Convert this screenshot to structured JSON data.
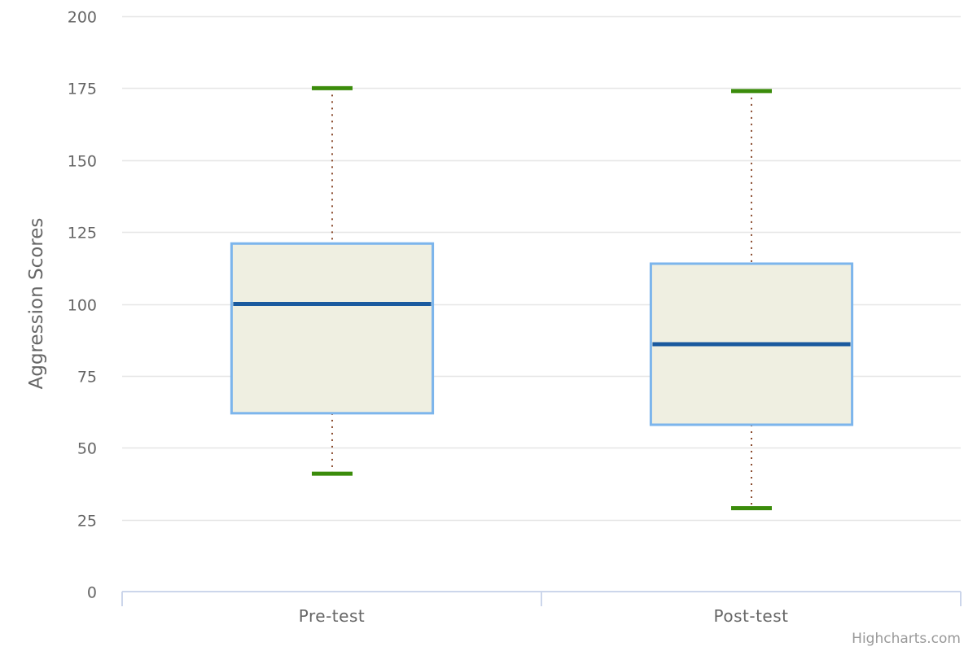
{
  "chart_data": {
    "type": "boxplot",
    "title": "",
    "xlabel": "",
    "ylabel": "Aggression Scores",
    "categories": [
      "Pre-test",
      "Post-test"
    ],
    "series": [
      {
        "boxes": [
          {
            "low": 41,
            "q1": 62,
            "median": 100,
            "q3": 121,
            "high": 175
          },
          {
            "low": 29,
            "q1": 58,
            "median": 86,
            "q3": 114,
            "high": 174
          }
        ]
      }
    ],
    "ylim": [
      0,
      200
    ],
    "yticks": [
      0,
      25,
      50,
      75,
      100,
      125,
      150,
      175,
      200
    ],
    "grid": true,
    "legend": "none",
    "colors": {
      "box_fill": "#efefe1",
      "box_stroke": "#7cb5ec",
      "median": "#1a5a9e",
      "whisker": "#8a4b2e",
      "whisker_cap": "#3b8c0b",
      "grid": "#e6e6e6",
      "axis": "#ccd6eb"
    }
  },
  "credits": "Highcharts.com"
}
